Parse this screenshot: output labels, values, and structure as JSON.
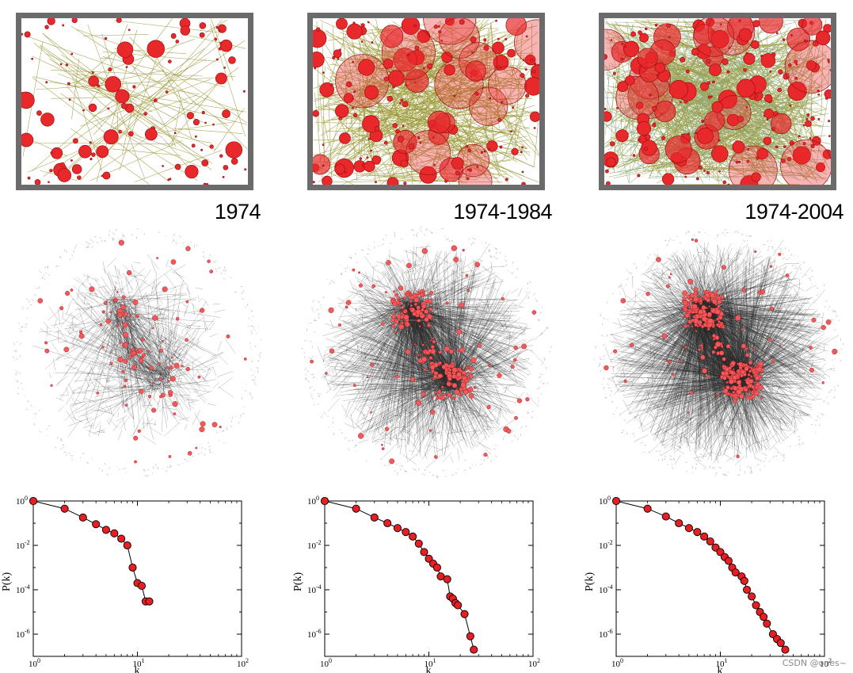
{
  "panels": [
    {
      "label": "1974",
      "density": 1,
      "chart_data": {
        "type": "scatter",
        "xlabel": "k",
        "ylabel": "P(k)",
        "xscale": "log",
        "yscale": "log",
        "xlim": [
          1,
          100
        ],
        "ylim": [
          1e-07,
          1
        ],
        "x_tick_labels": [
          "10^0",
          "10^1",
          "10^2"
        ],
        "y_tick_labels": [
          "10^0",
          "10^-2",
          "10^-4",
          "10^-6"
        ],
        "grid": false,
        "series": [
          {
            "x": [
              1,
              2,
              3,
              4,
              5,
              6,
              7,
              8,
              9,
              10,
              11,
              12,
              13
            ],
            "y": [
              1.0,
              0.45,
              0.18,
              0.09,
              0.05,
              0.035,
              0.02,
              0.01,
              0.001,
              0.0002,
              0.00015,
              3e-05,
              3e-05
            ]
          }
        ]
      }
    },
    {
      "label": "1974-1984",
      "density": 2,
      "chart_data": {
        "type": "scatter",
        "xlabel": "k",
        "ylabel": "P(k)",
        "xscale": "log",
        "yscale": "log",
        "xlim": [
          1,
          100
        ],
        "ylim": [
          1e-07,
          1
        ],
        "x_tick_labels": [
          "10^0",
          "10^1",
          "10^2"
        ],
        "y_tick_labels": [
          "10^0",
          "10^-2",
          "10^-4",
          "10^-6"
        ],
        "grid": false,
        "series": [
          {
            "x": [
              1,
              2,
              3,
              4,
              5,
              6,
              7,
              8,
              9,
              10,
              11,
              12,
              13,
              15,
              16,
              17,
              18,
              19,
              22,
              25,
              27
            ],
            "y": [
              1.0,
              0.45,
              0.18,
              0.1,
              0.06,
              0.04,
              0.025,
              0.012,
              0.005,
              0.0025,
              0.0015,
              0.001,
              0.0004,
              0.0003,
              5e-05,
              4e-05,
              2.5e-05,
              2e-05,
              8e-06,
              8e-07,
              2e-07
            ]
          }
        ]
      }
    },
    {
      "label": "1974-2004",
      "density": 3,
      "chart_data": {
        "type": "scatter",
        "xlabel": "k",
        "ylabel": "P(k)",
        "xscale": "log",
        "yscale": "log",
        "xlim": [
          1,
          100
        ],
        "ylim": [
          1e-07,
          1
        ],
        "x_tick_labels": [
          "10^0",
          "10^1",
          "10^2"
        ],
        "y_tick_labels": [
          "10^0",
          "10^-2",
          "10^-4",
          "10^-6"
        ],
        "grid": false,
        "series": [
          {
            "x": [
              1,
              2,
              3,
              4,
              5,
              6,
              7,
              8,
              9,
              10,
              11,
              12,
              13,
              14,
              16,
              17,
              18,
              20,
              22,
              24,
              26,
              28,
              32,
              35,
              38,
              42
            ],
            "y": [
              1.0,
              0.45,
              0.2,
              0.1,
              0.06,
              0.04,
              0.025,
              0.015,
              0.008,
              0.005,
              0.003,
              0.002,
              0.001,
              0.0006,
              0.0004,
              0.00025,
              0.0001,
              5e-05,
              2e-05,
              1e-05,
              6e-06,
              3e-06,
              1e-06,
              6e-07,
              4e-07,
              2e-07
            ]
          }
        ]
      }
    }
  ],
  "watermark": "CSDN @ones~",
  "colors": {
    "node_red": "#e8282b",
    "node_stroke": "#a01010",
    "edge_olive": "#9c9a3a",
    "frame": "#6b6b6b",
    "network_edge": "#2a2a2a"
  }
}
